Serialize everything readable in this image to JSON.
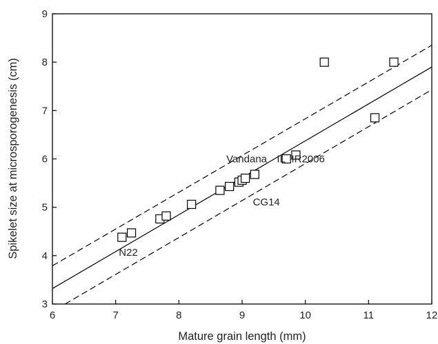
{
  "chart_data": {
    "type": "scatter",
    "xlabel": "Mature grain length (mm)",
    "ylabel": "Spikelet size at microsporogenesis (cm)",
    "xlim": [
      6,
      12
    ],
    "ylim": [
      3,
      9
    ],
    "xticks": [
      "6",
      "7",
      "8",
      "9",
      "10",
      "11",
      "12"
    ],
    "yticks": [
      "3",
      "4",
      "5",
      "6",
      "7",
      "8",
      "9"
    ],
    "grid": false,
    "points": [
      {
        "x": 7.1,
        "y": 4.38
      },
      {
        "x": 7.25,
        "y": 4.47
      },
      {
        "x": 7.7,
        "y": 4.76
      },
      {
        "x": 7.8,
        "y": 4.82
      },
      {
        "x": 8.2,
        "y": 5.06
      },
      {
        "x": 8.65,
        "y": 5.35
      },
      {
        "x": 8.8,
        "y": 5.43
      },
      {
        "x": 8.95,
        "y": 5.52
      },
      {
        "x": 9.0,
        "y": 5.56
      },
      {
        "x": 9.05,
        "y": 5.6
      },
      {
        "x": 9.2,
        "y": 5.68
      },
      {
        "x": 9.7,
        "y": 6.0
      },
      {
        "x": 9.85,
        "y": 6.08
      },
      {
        "x": 10.3,
        "y": 8.0
      },
      {
        "x": 11.1,
        "y": 6.85
      },
      {
        "x": 11.4,
        "y": 8.0
      }
    ],
    "fit_line": {
      "x": [
        6,
        12
      ],
      "y": [
        3.32,
        7.9
      ]
    },
    "ci_upper": {
      "x": [
        6,
        12
      ],
      "y": [
        3.79,
        8.35
      ]
    },
    "ci_lower": {
      "x": [
        6.2,
        12
      ],
      "y": [
        3.0,
        7.43
      ]
    },
    "annotations": [
      {
        "text": "N22",
        "x": 7.05,
        "y": 4.0
      },
      {
        "text": "Vandana",
        "x": 8.75,
        "y": 5.93
      },
      {
        "text": "IL",
        "x": 9.55,
        "y": 5.93
      },
      {
        "text": "IR2006",
        "x": 9.78,
        "y": 5.93
      },
      {
        "text": "CG14",
        "x": 9.17,
        "y": 5.04
      }
    ]
  }
}
